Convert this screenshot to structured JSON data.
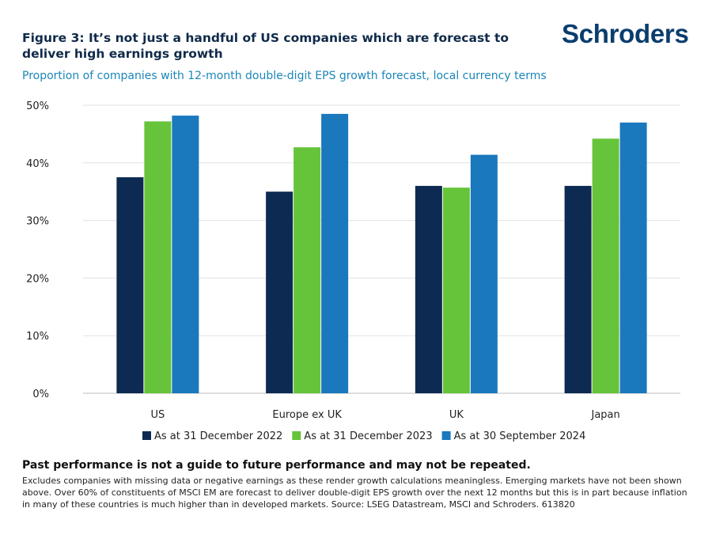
{
  "title": "Figure 3: It’s not just a handful of US companies which are forecast to deliver high earnings growth",
  "logo": "Schroders",
  "subtitle": "Proportion of companies with 12-month double-digit EPS growth forecast, local currency terms",
  "chart_data": {
    "type": "bar",
    "categories": [
      "US",
      "Europe ex UK",
      "UK",
      "Japan"
    ],
    "series": [
      {
        "name": "As at 31 December 2022",
        "values": [
          37.5,
          35,
          36,
          36
        ]
      },
      {
        "name": "As at 31 December 2023",
        "values": [
          47.2,
          42.7,
          35.7,
          44.2
        ]
      },
      {
        "name": "As at 30 September 2024",
        "values": [
          48.2,
          48.5,
          41.4,
          47
        ]
      }
    ],
    "ylim": [
      0,
      50
    ],
    "yticks": [
      "0%",
      "10%",
      "20%",
      "30%",
      "40%",
      "50%"
    ],
    "grid": true,
    "legend_position": "bottom",
    "colors": [
      "#0d2a52",
      "#66c43a",
      "#1a78bd"
    ]
  },
  "footer": {
    "disclaimer": "Past performance is not a guide to future performance and may not be repeated.",
    "note": "Excludes companies with missing data or negative earnings as these render growth calculations meaningless. Emerging markets have not been shown above. Over 60% of constituents of MSCI EM are forecast to deliver double-digit EPS growth over the next 12 months but this is in part because inflation in many of these countries is much higher than in developed markets. Source: LSEG Datastream, MSCI and Schroders. 613820"
  }
}
